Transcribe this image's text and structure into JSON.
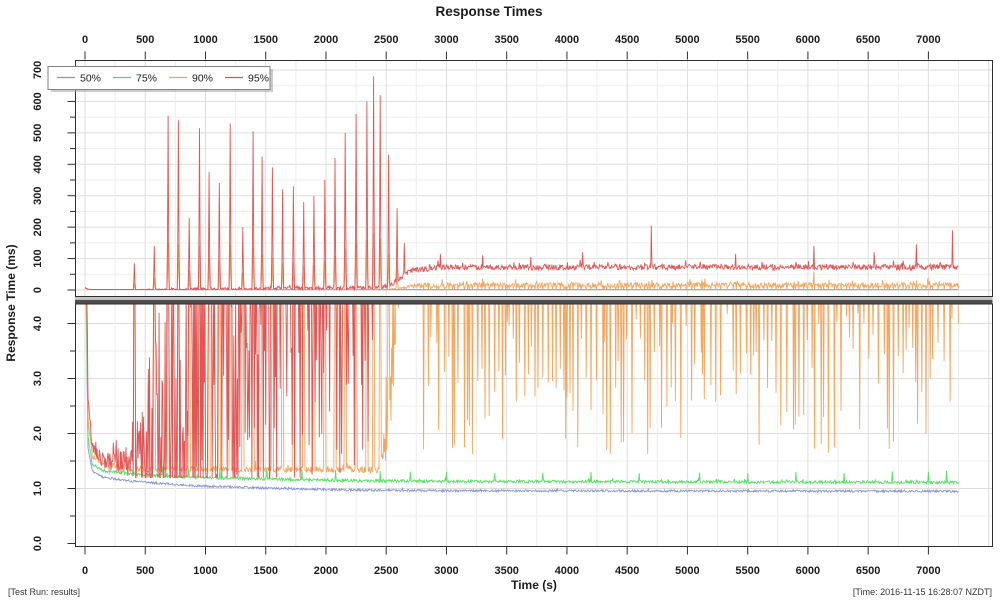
{
  "title": "Response Times",
  "footer": {
    "left": "[Test Run: results]",
    "right": "[Time: 2016-11-15 16:28:07 NZDT]"
  },
  "chart_data": {
    "type": "line",
    "title": "Response Times",
    "xlabel": "Time (s)",
    "ylabel": "Response Time (ms)",
    "grid": true,
    "x_axis": {
      "min": 0,
      "max": 7536,
      "data_end": 7250,
      "tick_step": 500,
      "grid_step": 250,
      "ticks": [
        0,
        500,
        1000,
        1500,
        2000,
        2500,
        3000,
        3500,
        4000,
        4500,
        5000,
        5500,
        6000,
        6500,
        7000
      ]
    },
    "panels": [
      {
        "name": "overview-ms",
        "ylim": [
          0,
          732
        ],
        "tick_step": 100,
        "grid_step": 50,
        "ticks": [
          "0",
          "100",
          "200",
          "300",
          "400",
          "500",
          "600",
          "700"
        ]
      },
      {
        "name": "zoom-ms",
        "ylim": [
          0,
          4.36
        ],
        "tick_step": 1,
        "grid_step": 0.5,
        "ticks": [
          "0.0",
          "1.0",
          "2.0",
          "3.0",
          "4.0"
        ]
      }
    ],
    "legend": {
      "position": "top-left",
      "entries": [
        "50%",
        "75%",
        "90%",
        "95%"
      ]
    },
    "series": [
      {
        "name": "50%",
        "color": "#8290da",
        "seed": 11,
        "floor": 0.85,
        "burst_p": 0.03,
        "burst_mult": 1.5,
        "baseline": [
          [
            0,
            6
          ],
          [
            25,
            1.75
          ],
          [
            60,
            1.32
          ],
          [
            150,
            1.2
          ],
          [
            400,
            1.13
          ],
          [
            900,
            1.05
          ],
          [
            1600,
            1.0
          ],
          [
            2300,
            0.97
          ],
          [
            3000,
            0.96
          ],
          [
            7250,
            0.95
          ]
        ],
        "noise": [
          [
            0,
            0.02
          ],
          [
            7250,
            0.02
          ]
        ],
        "spikes": []
      },
      {
        "name": "75%",
        "color": "#4adf5c",
        "seed": 22,
        "floor": 0.95,
        "burst_p": 0.05,
        "burst_mult": 1.6,
        "baseline": [
          [
            0,
            6.5
          ],
          [
            25,
            1.95
          ],
          [
            60,
            1.45
          ],
          [
            150,
            1.32
          ],
          [
            400,
            1.26
          ],
          [
            900,
            1.2
          ],
          [
            1600,
            1.17
          ],
          [
            2300,
            1.14
          ],
          [
            3000,
            1.13
          ],
          [
            7250,
            1.11
          ]
        ],
        "noise": [
          [
            0,
            0.025
          ],
          [
            7250,
            0.025
          ]
        ],
        "spikes": [
          [
            320,
            1.42
          ],
          [
            640,
            1.4
          ],
          [
            860,
            1.36
          ],
          [
            1120,
            1.37
          ],
          [
            1510,
            1.36
          ],
          [
            1800,
            1.34
          ],
          [
            2080,
            1.34
          ],
          [
            2450,
            1.32
          ],
          [
            2700,
            1.3
          ],
          [
            3000,
            1.3
          ],
          [
            3400,
            1.28
          ],
          [
            3800,
            1.29
          ],
          [
            4200,
            1.3
          ],
          [
            4600,
            1.28
          ],
          [
            5100,
            1.29
          ],
          [
            5500,
            1.28
          ],
          [
            5900,
            1.3
          ],
          [
            6300,
            1.28
          ],
          [
            6700,
            1.31
          ],
          [
            7000,
            1.3
          ],
          [
            7150,
            1.32
          ]
        ]
      },
      {
        "name": "90%",
        "color": "#f5a054",
        "seed": 33,
        "floor": 1.05,
        "burst_p": 0.06,
        "burst_mult": 2.0,
        "baseline": [
          [
            0,
            7
          ],
          [
            25,
            2.3
          ],
          [
            60,
            1.58
          ],
          [
            150,
            1.45
          ],
          [
            400,
            1.36
          ],
          [
            2450,
            1.34
          ],
          [
            2520,
            2.2
          ],
          [
            2600,
            5
          ],
          [
            2750,
            14
          ],
          [
            3200,
            16
          ],
          [
            7250,
            16
          ]
        ],
        "noise": [
          [
            0,
            0.05
          ],
          [
            2450,
            0.06
          ],
          [
            2600,
            1.5
          ],
          [
            2750,
            8
          ],
          [
            7250,
            8
          ]
        ],
        "spikes": [
          [
            410,
            22
          ],
          [
            575,
            38
          ],
          [
            690,
            150
          ],
          [
            775,
            145
          ],
          [
            865,
            62
          ],
          [
            950,
            140
          ],
          [
            1030,
            100
          ],
          [
            1115,
            92
          ],
          [
            1205,
            143
          ],
          [
            1310,
            55
          ],
          [
            1395,
            135
          ],
          [
            1470,
            112
          ],
          [
            1555,
            103
          ],
          [
            1640,
            85
          ],
          [
            1730,
            88
          ],
          [
            1815,
            75
          ],
          [
            1900,
            80
          ],
          [
            1990,
            92
          ],
          [
            2075,
            108
          ],
          [
            2160,
            132
          ],
          [
            2250,
            148
          ],
          [
            2340,
            158
          ],
          [
            2395,
            182
          ],
          [
            2450,
            163
          ],
          [
            2520,
            115
          ],
          [
            2590,
            70
          ],
          [
            6050,
            58
          ]
        ],
        "dips_gen": {
          "start": 2780,
          "end": 7250,
          "interval_min": 12,
          "interval_max": 55,
          "v_min": 1.6,
          "v_max": 4.2,
          "seed": 77
        }
      },
      {
        "name": "95%",
        "color": "#df4e4e",
        "seed": 44,
        "floor": 1.2,
        "burst_p": 0.07,
        "burst_mult": 2.2,
        "baseline": [
          [
            0,
            8
          ],
          [
            25,
            2.7
          ],
          [
            60,
            1.72
          ],
          [
            150,
            1.52
          ],
          [
            400,
            1.47
          ],
          [
            700,
            1.9
          ],
          [
            1000,
            2.6
          ],
          [
            1400,
            4
          ],
          [
            2000,
            6
          ],
          [
            2450,
            8
          ],
          [
            2550,
            20
          ],
          [
            2700,
            62
          ],
          [
            2950,
            72
          ],
          [
            7250,
            73
          ]
        ],
        "noise": [
          [
            0,
            0.06
          ],
          [
            400,
            0.35
          ],
          [
            650,
            3
          ],
          [
            1000,
            4
          ],
          [
            2450,
            6
          ],
          [
            2700,
            9
          ],
          [
            7250,
            9
          ]
        ],
        "spikes": [
          [
            410,
            85
          ],
          [
            575,
            140
          ],
          [
            690,
            555
          ],
          [
            775,
            540
          ],
          [
            865,
            230
          ],
          [
            950,
            515
          ],
          [
            1030,
            375
          ],
          [
            1115,
            340
          ],
          [
            1205,
            530
          ],
          [
            1310,
            200
          ],
          [
            1395,
            505
          ],
          [
            1470,
            425
          ],
          [
            1555,
            390
          ],
          [
            1640,
            320
          ],
          [
            1730,
            330
          ],
          [
            1815,
            280
          ],
          [
            1900,
            300
          ],
          [
            1990,
            350
          ],
          [
            2075,
            420
          ],
          [
            2160,
            500
          ],
          [
            2250,
            560
          ],
          [
            2340,
            600
          ],
          [
            2395,
            680
          ],
          [
            2450,
            620
          ],
          [
            2520,
            430
          ],
          [
            2590,
            260
          ],
          [
            2650,
            150
          ],
          [
            2950,
            115
          ],
          [
            3300,
            110
          ],
          [
            3700,
            105
          ],
          [
            4130,
            120
          ],
          [
            4700,
            205
          ],
          [
            5400,
            115
          ],
          [
            6050,
            140
          ],
          [
            6550,
            120
          ],
          [
            6900,
            145
          ],
          [
            7200,
            190
          ]
        ]
      }
    ]
  }
}
